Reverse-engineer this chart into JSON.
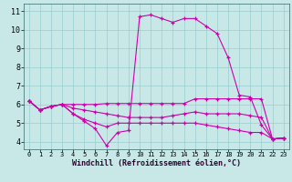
{
  "xlabel": "Windchill (Refroidissement éolien,°C)",
  "bg_color": "#c8e8e8",
  "grid_color": "#99cccc",
  "line_color": "#cc00aa",
  "x_ticks": [
    0,
    1,
    2,
    3,
    4,
    5,
    6,
    7,
    8,
    9,
    10,
    11,
    12,
    13,
    14,
    15,
    16,
    17,
    18,
    19,
    20,
    21,
    22,
    23
  ],
  "y_ticks": [
    4,
    5,
    6,
    7,
    8,
    9,
    10,
    11
  ],
  "ylim": [
    3.6,
    11.4
  ],
  "xlim": [
    -0.5,
    23.5
  ],
  "curves": [
    {
      "x": [
        0,
        1,
        2,
        3,
        4,
        5,
        6,
        7,
        8,
        9,
        10,
        11,
        12,
        13,
        14,
        15,
        16,
        17,
        18,
        19,
        20,
        21,
        22,
        23
      ],
      "y": [
        6.2,
        5.7,
        5.9,
        6.0,
        5.5,
        5.1,
        4.7,
        3.8,
        4.5,
        4.6,
        10.7,
        10.8,
        10.6,
        10.4,
        10.6,
        10.6,
        10.2,
        9.8,
        8.5,
        6.5,
        6.4,
        4.9,
        4.15,
        4.2
      ]
    },
    {
      "x": [
        0,
        1,
        2,
        3,
        4,
        5,
        6,
        7,
        8,
        9,
        10,
        11,
        12,
        13,
        14,
        15,
        16,
        17,
        18,
        19,
        20,
        21,
        22,
        23
      ],
      "y": [
        6.2,
        5.7,
        5.9,
        6.0,
        6.0,
        6.0,
        6.0,
        6.05,
        6.05,
        6.05,
        6.05,
        6.05,
        6.05,
        6.05,
        6.05,
        6.3,
        6.3,
        6.3,
        6.3,
        6.3,
        6.3,
        6.3,
        4.15,
        4.2
      ]
    },
    {
      "x": [
        0,
        1,
        2,
        3,
        4,
        5,
        6,
        7,
        8,
        9,
        10,
        11,
        12,
        13,
        14,
        15,
        16,
        17,
        18,
        19,
        20,
        21,
        22,
        23
      ],
      "y": [
        6.2,
        5.7,
        5.9,
        6.0,
        5.8,
        5.7,
        5.6,
        5.5,
        5.4,
        5.3,
        5.3,
        5.3,
        5.3,
        5.4,
        5.5,
        5.6,
        5.5,
        5.5,
        5.5,
        5.5,
        5.4,
        5.3,
        4.15,
        4.2
      ]
    },
    {
      "x": [
        0,
        1,
        2,
        3,
        4,
        5,
        6,
        7,
        8,
        9,
        10,
        11,
        12,
        13,
        14,
        15,
        16,
        17,
        18,
        19,
        20,
        21,
        22,
        23
      ],
      "y": [
        6.2,
        5.7,
        5.9,
        6.0,
        5.5,
        5.2,
        5.0,
        4.8,
        5.0,
        5.0,
        5.0,
        5.0,
        5.0,
        5.0,
        5.0,
        5.0,
        4.9,
        4.8,
        4.7,
        4.6,
        4.5,
        4.5,
        4.15,
        4.2
      ]
    }
  ],
  "xlabel_fontsize": 6,
  "tick_fontsize_x": 5,
  "tick_fontsize_y": 6
}
